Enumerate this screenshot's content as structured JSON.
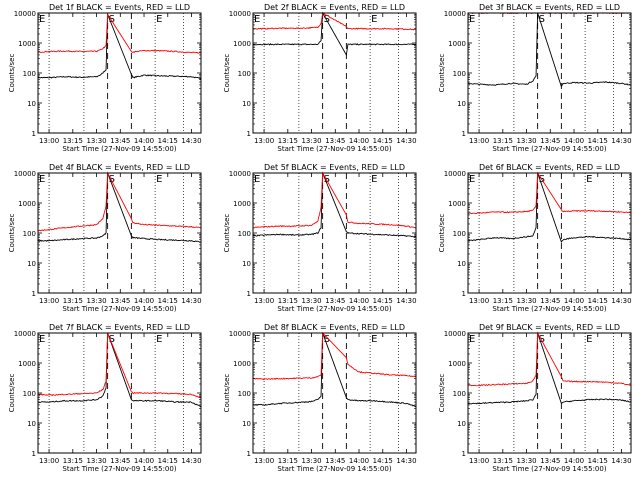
{
  "figure": {
    "common": {
      "xlabel": "Start Time (27-Nov-09 14:55:00)",
      "ylabel": "Counts/sec",
      "x_ticks": [
        "13:00",
        "13:15",
        "13:30",
        "13:45",
        "14:00",
        "14:15",
        "14:30"
      ],
      "y_ticks": [
        "1",
        "10",
        "100",
        "1000",
        "10000"
      ],
      "y_scale": "log",
      "ylim": [
        1,
        10000
      ],
      "xlim": [
        "12:53",
        "14:36"
      ],
      "marker_labels": {
        "start": "S",
        "end": "E"
      },
      "marker_times_dashed": [
        "13:37",
        "13:52"
      ],
      "marker_times_dotted": [
        "13:00",
        "13:22",
        "14:07",
        "14:25"
      ],
      "colors": {
        "events": "#000000",
        "lld": "#ff0000"
      }
    }
  },
  "chart_data": [
    {
      "type": "line",
      "title": "Det 1f BLACK = Events, RED = LLD",
      "xlabel": "Start Time (27-Nov-09 14:55:00)",
      "ylabel": "Counts/sec",
      "y_scale": "log",
      "ylim": [
        1,
        10000
      ],
      "xlim": [
        "12:53",
        "14:36"
      ],
      "x_ticks": [
        "13:00",
        "13:15",
        "13:30",
        "13:45",
        "14:00",
        "14:15",
        "14:30"
      ],
      "y_ticks": [
        "1",
        "10",
        "100",
        "1000",
        "10000"
      ],
      "grid": false,
      "series": [
        {
          "name": "Events",
          "color": "#000000",
          "x": [
            "12:53",
            "13:00",
            "13:10",
            "13:20",
            "13:30",
            "13:33",
            "13:36",
            "13:37",
            "13:52",
            "13:53",
            "14:00",
            "14:10",
            "14:20",
            "14:30",
            "14:36"
          ],
          "values": [
            70,
            70,
            75,
            72,
            75,
            90,
            130,
            9000,
            90,
            70,
            85,
            80,
            78,
            75,
            65
          ]
        },
        {
          "name": "LLD",
          "color": "#ff0000",
          "x": [
            "12:53",
            "13:00",
            "13:10",
            "13:20",
            "13:30",
            "13:33",
            "13:36",
            "13:37",
            "13:52",
            "13:53",
            "14:00",
            "14:10",
            "14:20",
            "14:30",
            "14:36"
          ],
          "values": [
            500,
            520,
            540,
            520,
            530,
            600,
            800,
            9000,
            520,
            500,
            560,
            550,
            520,
            480,
            470
          ]
        }
      ]
    },
    {
      "type": "line",
      "title": "Det 2f BLACK = Events, RED = LLD",
      "xlabel": "Start Time (27-Nov-09 14:55:00)",
      "ylabel": "Counts/sec",
      "y_scale": "log",
      "ylim": [
        1,
        10000
      ],
      "xlim": [
        "12:53",
        "14:36"
      ],
      "x_ticks": [
        "13:00",
        "13:15",
        "13:30",
        "13:45",
        "14:00",
        "14:15",
        "14:30"
      ],
      "y_ticks": [
        "1",
        "10",
        "100",
        "1000",
        "10000"
      ],
      "grid": false,
      "series": [
        {
          "name": "Events",
          "color": "#000000",
          "x": [
            "12:53",
            "13:00",
            "13:10",
            "13:20",
            "13:30",
            "13:34",
            "13:36",
            "13:37",
            "13:52",
            "13:53",
            "14:00",
            "14:10",
            "14:20",
            "14:30",
            "14:36"
          ],
          "values": [
            900,
            900,
            900,
            900,
            900,
            900,
            1200,
            10000,
            400,
            900,
            900,
            900,
            900,
            900,
            900
          ]
        },
        {
          "name": "LLD",
          "color": "#ff0000",
          "x": [
            "12:53",
            "13:00",
            "13:10",
            "13:20",
            "13:30",
            "13:34",
            "13:36",
            "13:37",
            "13:52",
            "13:53",
            "14:00",
            "14:10",
            "14:20",
            "14:30",
            "14:36"
          ],
          "values": [
            3000,
            3000,
            3100,
            3100,
            3200,
            3400,
            4500,
            10000,
            3500,
            3000,
            3000,
            3000,
            3000,
            2900,
            2800
          ]
        }
      ]
    },
    {
      "type": "line",
      "title": "Det 3f BLACK = Events, RED = LLD",
      "xlabel": "Start Time (27-Nov-09 14:55:00)",
      "ylabel": "Counts/sec",
      "y_scale": "log",
      "ylim": [
        1,
        10000
      ],
      "xlim": [
        "12:53",
        "14:36"
      ],
      "x_ticks": [
        "13:00",
        "13:15",
        "13:30",
        "13:45",
        "14:00",
        "14:15",
        "14:30"
      ],
      "y_ticks": [
        "1",
        "10",
        "100",
        "1000",
        "10000"
      ],
      "grid": false,
      "series": [
        {
          "name": "Events",
          "color": "#000000",
          "x": [
            "12:53",
            "13:00",
            "13:10",
            "13:20",
            "13:30",
            "13:34",
            "13:36",
            "13:37",
            "13:52",
            "13:53",
            "14:00",
            "14:10",
            "14:20",
            "14:30",
            "14:36"
          ],
          "values": [
            45,
            42,
            40,
            45,
            42,
            55,
            80,
            10000,
            35,
            45,
            48,
            46,
            50,
            45,
            40
          ]
        },
        {
          "name": "LLD",
          "color": "#ff0000",
          "x": [
            "12:53",
            "14:36"
          ],
          "values": [
            10000,
            10000
          ]
        }
      ]
    },
    {
      "type": "line",
      "title": "Det 4f BLACK = Events, RED = LLD",
      "xlabel": "Start Time (27-Nov-09 14:55:00)",
      "ylabel": "Counts/sec",
      "y_scale": "log",
      "ylim": [
        1,
        10000
      ],
      "xlim": [
        "12:53",
        "14:36"
      ],
      "x_ticks": [
        "13:00",
        "13:15",
        "13:30",
        "13:45",
        "14:00",
        "14:15",
        "14:30"
      ],
      "y_ticks": [
        "1",
        "10",
        "100",
        "1000",
        "10000"
      ],
      "grid": false,
      "series": [
        {
          "name": "Events",
          "color": "#000000",
          "x": [
            "12:53",
            "13:00",
            "13:10",
            "13:20",
            "13:30",
            "13:34",
            "13:36",
            "13:37",
            "13:52",
            "13:53",
            "14:00",
            "14:10",
            "14:20",
            "14:30",
            "14:36"
          ],
          "values": [
            55,
            55,
            60,
            65,
            68,
            80,
            100,
            10000,
            80,
            70,
            65,
            60,
            58,
            55,
            50
          ]
        },
        {
          "name": "LLD",
          "color": "#ff0000",
          "x": [
            "12:53",
            "13:00",
            "13:10",
            "13:20",
            "13:30",
            "13:34",
            "13:36",
            "13:37",
            "13:52",
            "13:53",
            "14:00",
            "14:10",
            "14:20",
            "14:30",
            "14:36"
          ],
          "values": [
            120,
            130,
            150,
            170,
            190,
            300,
            800,
            10000,
            300,
            220,
            190,
            180,
            170,
            160,
            150
          ]
        }
      ]
    },
    {
      "type": "line",
      "title": "Det 5f BLACK = Events, RED = LLD",
      "xlabel": "Start Time (27-Nov-09 14:55:00)",
      "ylabel": "Counts/sec",
      "y_scale": "log",
      "ylim": [
        1,
        10000
      ],
      "xlim": [
        "12:53",
        "14:36"
      ],
      "x_ticks": [
        "13:00",
        "13:15",
        "13:30",
        "13:45",
        "14:00",
        "14:15",
        "14:30"
      ],
      "y_ticks": [
        "1",
        "10",
        "100",
        "1000",
        "10000"
      ],
      "grid": false,
      "series": [
        {
          "name": "Events",
          "color": "#000000",
          "x": [
            "12:53",
            "13:00",
            "13:10",
            "13:20",
            "13:30",
            "13:34",
            "13:36",
            "13:37",
            "13:52",
            "13:53",
            "14:00",
            "14:10",
            "14:20",
            "14:30",
            "14:36"
          ],
          "values": [
            80,
            85,
            90,
            85,
            90,
            100,
            150,
            10000,
            110,
            100,
            95,
            90,
            85,
            80,
            75
          ]
        },
        {
          "name": "LLD",
          "color": "#ff0000",
          "x": [
            "12:53",
            "13:00",
            "13:10",
            "13:20",
            "13:30",
            "13:34",
            "13:36",
            "13:37",
            "13:52",
            "13:53",
            "14:00",
            "14:10",
            "14:20",
            "14:30",
            "14:36"
          ],
          "values": [
            150,
            160,
            170,
            170,
            180,
            250,
            700,
            10000,
            400,
            230,
            210,
            200,
            190,
            170,
            150
          ]
        }
      ]
    },
    {
      "type": "line",
      "title": "Det 6f BLACK = Events, RED = LLD",
      "xlabel": "Start Time (27-Nov-09 14:55:00)",
      "ylabel": "Counts/sec",
      "y_scale": "log",
      "ylim": [
        1,
        10000
      ],
      "xlim": [
        "12:53",
        "14:36"
      ],
      "x_ticks": [
        "13:00",
        "13:15",
        "13:30",
        "13:45",
        "14:00",
        "14:15",
        "14:30"
      ],
      "y_ticks": [
        "1",
        "10",
        "100",
        "1000",
        "10000"
      ],
      "grid": false,
      "series": [
        {
          "name": "Events",
          "color": "#000000",
          "x": [
            "12:53",
            "13:00",
            "13:10",
            "13:20",
            "13:30",
            "13:34",
            "13:36",
            "13:37",
            "13:52",
            "13:53",
            "14:00",
            "14:10",
            "14:20",
            "14:30",
            "14:36"
          ],
          "values": [
            55,
            60,
            70,
            65,
            75,
            80,
            150,
            10000,
            50,
            60,
            70,
            75,
            70,
            65,
            60
          ]
        },
        {
          "name": "LLD",
          "color": "#ff0000",
          "x": [
            "12:53",
            "13:00",
            "13:10",
            "13:20",
            "13:30",
            "13:34",
            "13:36",
            "13:37",
            "13:52",
            "13:53",
            "14:00",
            "14:10",
            "14:20",
            "14:30",
            "14:36"
          ],
          "values": [
            450,
            460,
            500,
            490,
            520,
            560,
            800,
            10000,
            600,
            520,
            540,
            550,
            530,
            500,
            480
          ]
        }
      ]
    },
    {
      "type": "line",
      "title": "Det 7f BLACK = Events, RED = LLD",
      "xlabel": "Start Time (27-Nov-09 14:55:00)",
      "ylabel": "Counts/sec",
      "y_scale": "log",
      "ylim": [
        1,
        10000
      ],
      "xlim": [
        "12:53",
        "14:36"
      ],
      "x_ticks": [
        "13:00",
        "13:15",
        "13:30",
        "13:45",
        "14:00",
        "14:15",
        "14:30"
      ],
      "y_ticks": [
        "1",
        "10",
        "100",
        "1000",
        "10000"
      ],
      "grid": false,
      "series": [
        {
          "name": "Events",
          "color": "#000000",
          "x": [
            "12:53",
            "13:00",
            "13:10",
            "13:20",
            "13:30",
            "13:34",
            "13:36",
            "13:37",
            "13:52",
            "13:53",
            "14:00",
            "14:10",
            "14:20",
            "14:30",
            "14:36"
          ],
          "values": [
            50,
            50,
            55,
            55,
            60,
            80,
            150,
            10000,
            60,
            55,
            55,
            55,
            50,
            50,
            35
          ]
        },
        {
          "name": "LLD",
          "color": "#ff0000",
          "x": [
            "12:53",
            "13:00",
            "13:10",
            "13:20",
            "13:30",
            "13:34",
            "13:36",
            "13:37",
            "13:52",
            "13:53",
            "14:00",
            "14:10",
            "14:20",
            "14:30",
            "14:36"
          ],
          "values": [
            90,
            85,
            90,
            95,
            100,
            130,
            250,
            10000,
            110,
            100,
            100,
            100,
            95,
            90,
            70
          ]
        }
      ]
    },
    {
      "type": "line",
      "title": "Det 8f BLACK = Events, RED = LLD",
      "xlabel": "Start Time (27-Nov-09 14:55:00)",
      "ylabel": "Counts/sec",
      "y_scale": "log",
      "ylim": [
        1,
        10000
      ],
      "xlim": [
        "12:53",
        "14:36"
      ],
      "x_ticks": [
        "13:00",
        "13:15",
        "13:30",
        "13:45",
        "14:00",
        "14:15",
        "14:30"
      ],
      "y_ticks": [
        "1",
        "10",
        "100",
        "1000",
        "10000"
      ],
      "grid": false,
      "series": [
        {
          "name": "Events",
          "color": "#000000",
          "x": [
            "12:53",
            "13:00",
            "13:10",
            "13:20",
            "13:30",
            "13:34",
            "13:36",
            "13:37",
            "13:52",
            "13:53",
            "14:00",
            "14:10",
            "14:20",
            "14:30",
            "14:36"
          ],
          "values": [
            40,
            40,
            45,
            48,
            52,
            60,
            80,
            10000,
            70,
            60,
            55,
            55,
            50,
            45,
            35
          ]
        },
        {
          "name": "LLD",
          "color": "#ff0000",
          "x": [
            "12:53",
            "13:00",
            "13:10",
            "13:20",
            "13:30",
            "13:34",
            "13:36",
            "13:37",
            "13:52",
            "13:53",
            "14:00",
            "14:10",
            "14:20",
            "14:30",
            "14:36"
          ],
          "values": [
            300,
            290,
            300,
            310,
            320,
            350,
            400,
            10000,
            1500,
            900,
            500,
            450,
            400,
            380,
            350
          ]
        }
      ]
    },
    {
      "type": "line",
      "title": "Det 9f BLACK = Events, RED = LLD",
      "xlabel": "Start Time (27-Nov-09 14:55:00)",
      "ylabel": "Counts/sec",
      "y_scale": "log",
      "ylim": [
        1,
        10000
      ],
      "xlim": [
        "12:53",
        "14:36"
      ],
      "x_ticks": [
        "13:00",
        "13:15",
        "13:30",
        "13:45",
        "14:00",
        "14:15",
        "14:30"
      ],
      "y_ticks": [
        "1",
        "10",
        "100",
        "1000",
        "10000"
      ],
      "grid": false,
      "series": [
        {
          "name": "Events",
          "color": "#000000",
          "x": [
            "12:53",
            "13:00",
            "13:10",
            "13:20",
            "13:30",
            "13:34",
            "13:36",
            "13:37",
            "13:52",
            "13:53",
            "14:00",
            "14:10",
            "14:20",
            "14:30",
            "14:36"
          ],
          "values": [
            45,
            45,
            48,
            50,
            55,
            60,
            90,
            10000,
            45,
            50,
            55,
            60,
            62,
            58,
            50
          ]
        },
        {
          "name": "LLD",
          "color": "#ff0000",
          "x": [
            "12:53",
            "13:00",
            "13:10",
            "13:20",
            "13:30",
            "13:34",
            "13:36",
            "13:37",
            "13:52",
            "13:53",
            "14:00",
            "14:10",
            "14:20",
            "14:30",
            "14:36"
          ],
          "values": [
            180,
            180,
            190,
            200,
            210,
            250,
            400,
            10000,
            350,
            250,
            240,
            240,
            230,
            210,
            180
          ]
        }
      ]
    }
  ]
}
